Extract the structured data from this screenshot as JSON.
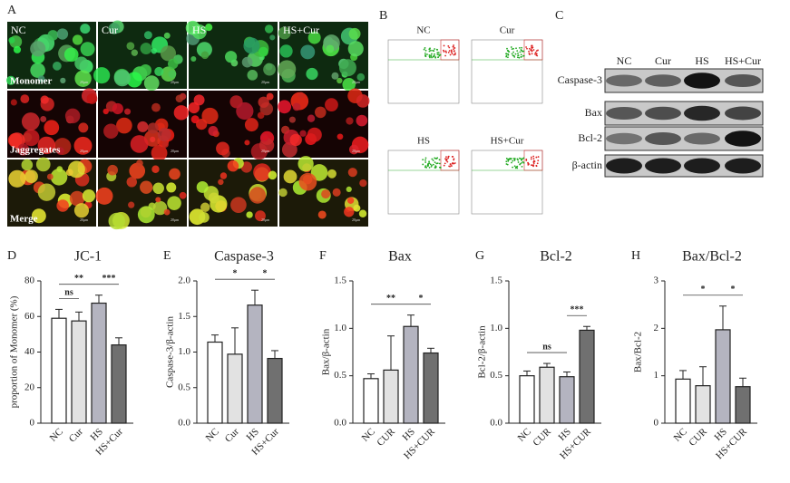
{
  "figure": {
    "panel_a": {
      "letter": "A",
      "columns": [
        "NC",
        "Cur",
        "HS",
        "HS+Cur"
      ],
      "rows": [
        "Monomer",
        "Jaggregates",
        "Merge"
      ],
      "scale_bar": "20μm"
    },
    "panel_b": {
      "letter": "B",
      "plots": [
        "NC",
        "Cur",
        "HS",
        "HS+Cur"
      ]
    },
    "panel_c": {
      "letter": "C",
      "lanes": [
        "NC",
        "Cur",
        "HS",
        "HS+Cur"
      ],
      "proteins": [
        "Caspase-3",
        "Bax",
        "Bcl-2",
        "β-actin"
      ]
    }
  },
  "chart_data": [
    {
      "type": "bar",
      "panel": "D",
      "title": "JC-1",
      "y_label": "proportion of Monomer (%)",
      "categories": [
        "NC",
        "Cur",
        "HS",
        "HS+Cur"
      ],
      "values": [
        59,
        57.5,
        67.5,
        44
      ],
      "errors": [
        5,
        5,
        4.5,
        4
      ],
      "colors": [
        "#ffffff",
        "#e2e2e2",
        "#b4b4c0",
        "#707070"
      ],
      "ylim": [
        0,
        80
      ],
      "yticks": [
        0,
        20,
        40,
        60,
        80
      ],
      "significance": [
        {
          "bars": [
            0,
            1
          ],
          "label": "ns"
        },
        {
          "bars": [
            0,
            2
          ],
          "label": "**"
        },
        {
          "bars": [
            2,
            3
          ],
          "label": "***"
        }
      ]
    },
    {
      "type": "bar",
      "panel": "E",
      "title": "Caspase-3",
      "y_label": "Caspase-3/β-actin",
      "categories": [
        "NC",
        "Cur",
        "HS",
        "HS+Cur"
      ],
      "values": [
        1.14,
        0.97,
        1.66,
        0.91
      ],
      "errors": [
        0.1,
        0.37,
        0.21,
        0.11
      ],
      "colors": [
        "#ffffff",
        "#e2e2e2",
        "#b4b4c0",
        "#707070"
      ],
      "ylim": [
        0,
        2
      ],
      "yticks": [
        {
          "value": 0,
          "label": "0.0"
        },
        {
          "value": 0.5,
          "label": "0.5"
        },
        {
          "value": 1,
          "label": "1.0"
        },
        {
          "value": 1.5,
          "label": "1.5"
        },
        {
          "value": 2,
          "label": "2.0"
        }
      ],
      "significance": [
        {
          "bars": [
            0,
            2
          ],
          "label": "*"
        },
        {
          "bars": [
            2,
            3
          ],
          "label": "*"
        }
      ]
    },
    {
      "type": "bar",
      "panel": "F",
      "title": "Bax",
      "y_label": "Bax/β-actin",
      "categories": [
        "NC",
        "CUR",
        "HS",
        "HS+CUR"
      ],
      "values": [
        0.47,
        0.56,
        1.02,
        0.74
      ],
      "errors": [
        0.05,
        0.36,
        0.12,
        0.05
      ],
      "colors": [
        "#ffffff",
        "#e2e2e2",
        "#b4b4c0",
        "#707070"
      ],
      "ylim": [
        0,
        1.5
      ],
      "yticks": [
        {
          "value": 0,
          "label": "0.0"
        },
        0.5,
        {
          "value": 1,
          "label": "1.0"
        },
        1.5
      ],
      "significance": [
        {
          "bars": [
            0,
            2
          ],
          "label": "**"
        },
        {
          "bars": [
            2,
            3
          ],
          "label": "*"
        }
      ]
    },
    {
      "type": "bar",
      "panel": "G",
      "title": "Bcl-2",
      "y_label": "Bcl-2/β-actin",
      "categories": [
        "NC",
        "CUR",
        "HS",
        "HS+CUR"
      ],
      "values": [
        0.5,
        0.59,
        0.49,
        0.98
      ],
      "errors": [
        0.05,
        0.04,
        0.05,
        0.04
      ],
      "colors": [
        "#ffffff",
        "#e2e2e2",
        "#b4b4c0",
        "#707070"
      ],
      "ylim": [
        0,
        1.5
      ],
      "yticks": [
        {
          "value": 0,
          "label": "0.0"
        },
        0.5,
        {
          "value": 1,
          "label": "1.0"
        },
        1.5
      ],
      "significance": [
        {
          "bars": [
            0,
            2
          ],
          "label": "ns"
        },
        {
          "bars": [
            2,
            3
          ],
          "label": "***"
        }
      ]
    },
    {
      "type": "bar",
      "panel": "H",
      "title": "Bax/Bcl-2",
      "y_label": "Bax/Bcl-2",
      "categories": [
        "NC",
        "CUR",
        "HS",
        "HS+CUR"
      ],
      "values": [
        0.93,
        0.79,
        1.97,
        0.77
      ],
      "errors": [
        0.18,
        0.4,
        0.5,
        0.18
      ],
      "colors": [
        "#ffffff",
        "#e2e2e2",
        "#b4b4c0",
        "#707070"
      ],
      "ylim": [
        0,
        3
      ],
      "yticks": [
        0,
        1,
        2,
        3
      ],
      "significance": [
        {
          "bars": [
            0,
            2
          ],
          "label": "*"
        },
        {
          "bars": [
            2,
            3
          ],
          "label": "*"
        }
      ]
    }
  ]
}
